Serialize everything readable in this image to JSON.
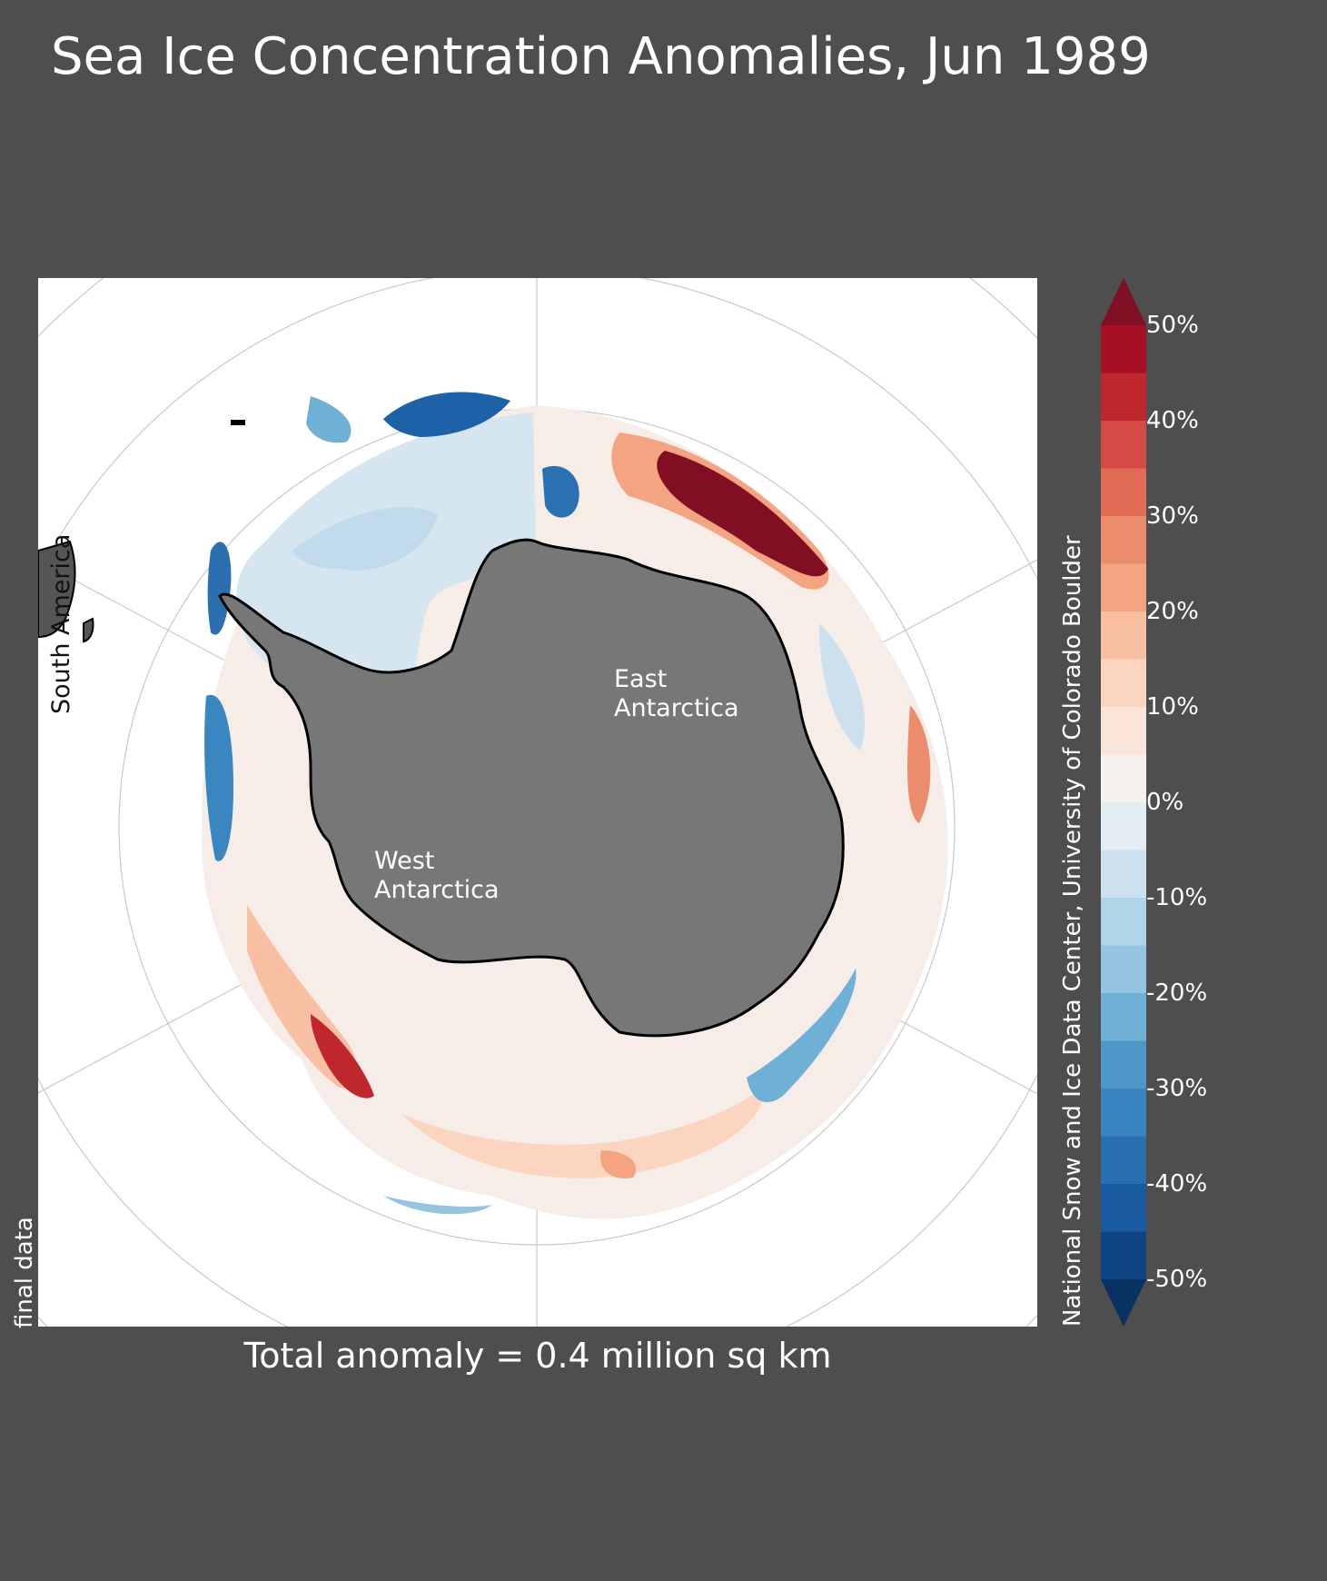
{
  "title": "Sea Ice Concentration Anomalies, Jun 1989",
  "status_note": "final data",
  "total_anomaly": "Total anomaly = 0.4 million sq km",
  "credit": "National Snow and Ice Data Center, University of Colorado Boulder",
  "map": {
    "region_labels": {
      "south_america": "South America",
      "west_line1": "West",
      "west_line2": "Antarctica",
      "east_line1": "East",
      "east_line2": "Antarctica"
    },
    "colors": {
      "background": "#4e4e4e",
      "ocean": "#ffffff",
      "land": "#777777",
      "coastline": "#000000",
      "graticule": "#c8c8c8"
    }
  },
  "colorbar": {
    "unit": "%",
    "range": [
      -50,
      50
    ],
    "step": 5,
    "extend": "both",
    "tick_labels": [
      "50%",
      "40%",
      "30%",
      "20%",
      "10%",
      "0%",
      "-10%",
      "-20%",
      "-30%",
      "-40%",
      "-50%"
    ],
    "colors_top_to_bottom": [
      "#a50f24",
      "#c0272d",
      "#d44b45",
      "#e16c55",
      "#eb8c6c",
      "#f4a481",
      "#f8bfa3",
      "#fbd5c0",
      "#fbe4d9",
      "#f6f0ee",
      "#e3edf4",
      "#cce0ee",
      "#b0d3e7",
      "#94c4df",
      "#6fb0d6",
      "#4c97c8",
      "#3984c0",
      "#2a6faf",
      "#1a5aa1",
      "#0f4483"
    ],
    "over_color": "#800f24",
    "under_color": "#083262"
  }
}
